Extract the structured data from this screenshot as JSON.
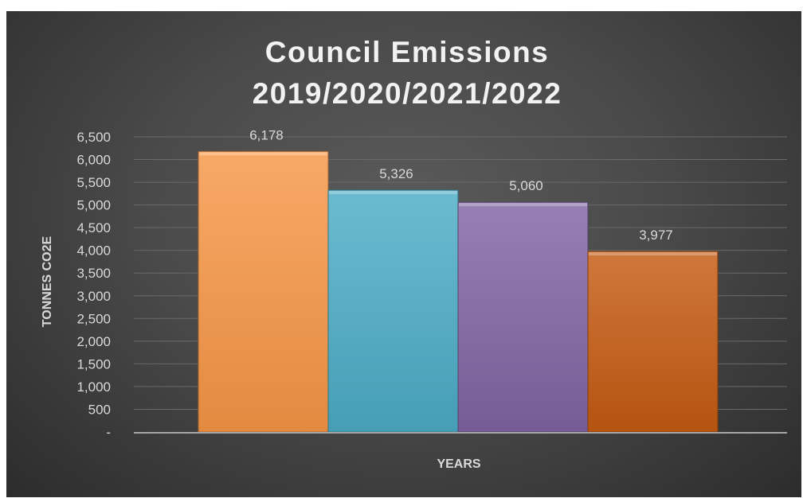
{
  "chart_data": {
    "type": "bar",
    "title_lines": [
      "Council Emissions",
      "2019/2020/2021/2022"
    ],
    "xlabel": "YEARS",
    "ylabel": "TONNES CO2E",
    "ylim": [
      0,
      6500
    ],
    "y_ticks": [
      {
        "value": 0,
        "label": "-"
      },
      {
        "value": 500,
        "label": "500"
      },
      {
        "value": 1000,
        "label": "1,000"
      },
      {
        "value": 1500,
        "label": "1,500"
      },
      {
        "value": 2000,
        "label": "2,000"
      },
      {
        "value": 2500,
        "label": "2,500"
      },
      {
        "value": 3000,
        "label": "3,000"
      },
      {
        "value": 3500,
        "label": "3,500"
      },
      {
        "value": 4000,
        "label": "4,000"
      },
      {
        "value": 4500,
        "label": "4,500"
      },
      {
        "value": 5000,
        "label": "5,000"
      },
      {
        "value": 5500,
        "label": "5,500"
      },
      {
        "value": 6000,
        "label": "6,000"
      },
      {
        "value": 6500,
        "label": "6,500"
      }
    ],
    "grid": true,
    "legend": "none",
    "series": [
      {
        "value": 6178,
        "label": "6,178",
        "color": "#f79646"
      },
      {
        "value": 5326,
        "label": "5,326",
        "color": "#4bacc6"
      },
      {
        "value": 5060,
        "label": "5,060",
        "color": "#8064a2"
      },
      {
        "value": 3977,
        "label": "3,977",
        "color": "#c55a11"
      }
    ]
  }
}
